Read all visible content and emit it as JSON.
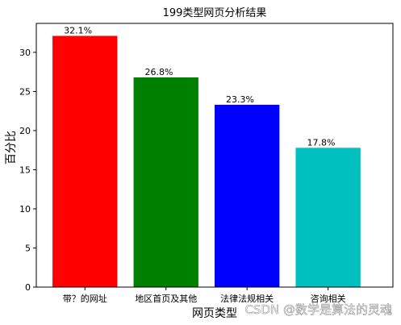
{
  "chart_data": {
    "type": "bar",
    "title": "199类型网页分析结果",
    "xlabel": "网页类型",
    "ylabel": "百分比",
    "categories": [
      "带？的网址",
      "地区首页及其他",
      "法律法规相关",
      "咨询相关"
    ],
    "values": [
      32.1,
      26.8,
      23.3,
      17.8
    ],
    "data_labels": [
      "32.1%",
      "26.8%",
      "23.3%",
      "17.8%"
    ],
    "colors": [
      "#ff0000",
      "#008000",
      "#0000ff",
      "#00bfbf"
    ],
    "ylim": [
      0,
      33.7
    ],
    "yticks": [
      0,
      5,
      10,
      15,
      20,
      25,
      30
    ],
    "grid": false,
    "legend": "none"
  },
  "watermark": "CSDN @数学是算法的灵魂"
}
